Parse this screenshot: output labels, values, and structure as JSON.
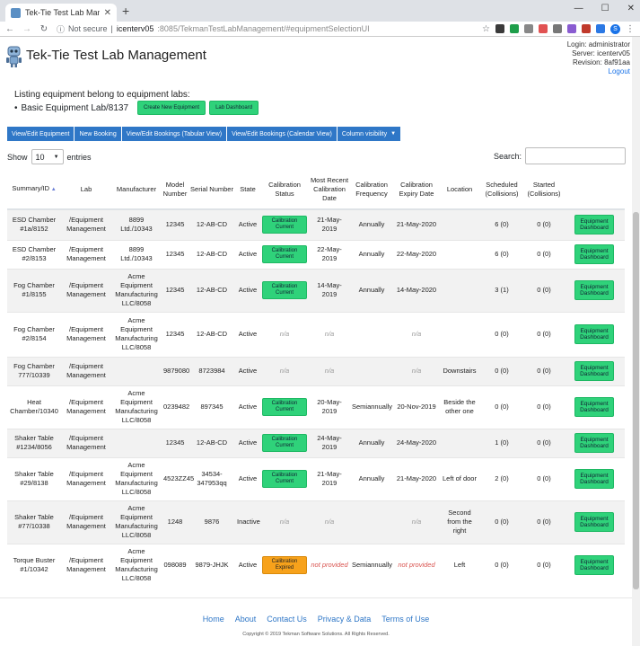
{
  "browser": {
    "tab_title": "Tek-Tie Test Lab Management",
    "not_secure": "Not secure",
    "host": "icenterv05",
    "path": ":8085/TekmanTestLabManagement/#equipmentSelectionUI",
    "profile_initial": "S"
  },
  "header": {
    "title": "Tek-Tie Test Lab Management",
    "login": "Login: administrator",
    "server": "Server: icenterv05",
    "revision": "Revision: 8af91aa",
    "logout": "Logout"
  },
  "listing": {
    "heading": "Listing equipment belong to equipment labs:",
    "lab": "Basic Equipment Lab/8137",
    "create_button": "Create New Equipment",
    "dashboard_button": "Lab Dashboard"
  },
  "toolbar": {
    "view_edit": "View/Edit Equipment",
    "new_booking": "New Booking",
    "bookings_tabular": "View/Edit Bookings (Tabular View)",
    "bookings_calendar": "View/Edit Bookings (Calendar View)",
    "column_visibility": "Column visibility"
  },
  "table_controls": {
    "show": "Show",
    "page_size": "10",
    "entries": "entries",
    "search_label": "Search:"
  },
  "columns": [
    "Summary/ID",
    "Lab",
    "Manufacturer",
    "Model Number",
    "Serial Number",
    "State",
    "Calibration Status",
    "Most Recent Calibration Date",
    "Calibration Frequency",
    "Calibration Expiry Date",
    "Location",
    "Scheduled (Collisions)",
    "Started (Collisions)",
    ""
  ],
  "rows": [
    {
      "summary": "ESD Chamber #1a/8152",
      "lab": "/Equipment Management",
      "manufacturer": "8899 Ltd./10343",
      "model": "12345",
      "serial": "12-AB-CD",
      "state": "Active",
      "cal_status": "Calibration Current",
      "cal_kind": "current",
      "recent": "21-May-2019",
      "frequency": "Annually",
      "expiry": "21-May-2020",
      "location": "",
      "scheduled": "6 (0)",
      "started": "0 (0)",
      "action": "Equipment Dashboard"
    },
    {
      "summary": "ESD Chamber #2/8153",
      "lab": "/Equipment Management",
      "manufacturer": "8899 Ltd./10343",
      "model": "12345",
      "serial": "12-AB-CD",
      "state": "Active",
      "cal_status": "Calibration Current",
      "cal_kind": "current",
      "recent": "22-May-2019",
      "frequency": "Annually",
      "expiry": "22-May-2020",
      "location": "",
      "scheduled": "6 (0)",
      "started": "0 (0)",
      "action": "Equipment Dashboard"
    },
    {
      "summary": "Fog Chamber #1/8155",
      "lab": "/Equipment Management",
      "manufacturer": "Acme Equipment Manufacturing LLC/8058",
      "model": "12345",
      "serial": "12-AB-CD",
      "state": "Active",
      "cal_status": "Calibration Current",
      "cal_kind": "current",
      "recent": "14-May-2019",
      "frequency": "Annually",
      "expiry": "14-May-2020",
      "location": "",
      "scheduled": "3 (1)",
      "started": "0 (0)",
      "action": "Equipment Dashboard"
    },
    {
      "summary": "Fog Chamber #2/8154",
      "lab": "/Equipment Management",
      "manufacturer": "Acme Equipment Manufacturing LLC/8058",
      "model": "12345",
      "serial": "12-AB-CD",
      "state": "Active",
      "cal_status": "n/a",
      "cal_kind": "na",
      "recent": "n/a",
      "frequency": "",
      "expiry": "n/a",
      "location": "",
      "scheduled": "0 (0)",
      "started": "0 (0)",
      "action": "Equipment Dashboard"
    },
    {
      "summary": "Fog Chamber 777/10339",
      "lab": "/Equipment Management",
      "manufacturer": "",
      "model": "9879080",
      "serial": "8723984",
      "state": "Active",
      "cal_status": "n/a",
      "cal_kind": "na",
      "recent": "n/a",
      "frequency": "",
      "expiry": "n/a",
      "location": "Downstairs",
      "scheduled": "0 (0)",
      "started": "0 (0)",
      "action": "Equipment Dashboard"
    },
    {
      "summary": "Heat Chamber/10340",
      "lab": "/Equipment Management",
      "manufacturer": "Acme Equipment Manufacturing LLC/8058",
      "model": "0239482",
      "serial": "897345",
      "state": "Active",
      "cal_status": "Calibration Current",
      "cal_kind": "current",
      "recent": "20-May-2019",
      "frequency": "Semiannually",
      "expiry": "20-Nov-2019",
      "location": "Beside the other one",
      "scheduled": "0 (0)",
      "started": "0 (0)",
      "action": "Equipment Dashboard"
    },
    {
      "summary": "Shaker Table #1234/8056",
      "lab": "/Equipment Management",
      "manufacturer": "",
      "model": "12345",
      "serial": "12-AB-CD",
      "state": "Active",
      "cal_status": "Calibration Current",
      "cal_kind": "current",
      "recent": "24-May-2019",
      "frequency": "Annually",
      "expiry": "24-May-2020",
      "location": "",
      "scheduled": "1 (0)",
      "started": "0 (0)",
      "action": "Equipment Dashboard"
    },
    {
      "summary": "Shaker Table #29/8138",
      "lab": "/Equipment Management",
      "manufacturer": "Acme Equipment Manufacturing LLC/8058",
      "model": "4523ZZ45",
      "serial": "34534-347953qq",
      "state": "Active",
      "cal_status": "Calibration Current",
      "cal_kind": "current",
      "recent": "21-May-2019",
      "frequency": "Annually",
      "expiry": "21-May-2020",
      "location": "Left of door",
      "scheduled": "2 (0)",
      "started": "0 (0)",
      "action": "Equipment Dashboard"
    },
    {
      "summary": "Shaker Table #77/10338",
      "lab": "/Equipment Management",
      "manufacturer": "Acme Equipment Manufacturing LLC/8058",
      "model": "1248",
      "serial": "9876",
      "state": "Inactive",
      "cal_status": "n/a",
      "cal_kind": "na",
      "recent": "n/a",
      "frequency": "",
      "expiry": "n/a",
      "location": "Second from the right",
      "scheduled": "0 (0)",
      "started": "0 (0)",
      "action": "Equipment Dashboard"
    },
    {
      "summary": "Torque Buster #1/10342",
      "lab": "/Equipment Management",
      "manufacturer": "Acme Equipment Manufacturing LLC/8058",
      "model": "098089",
      "serial": "9879-JHJK",
      "state": "Active",
      "cal_status": "Calibration Expired",
      "cal_kind": "expired",
      "recent": "not provided",
      "frequency": "Semiannually",
      "expiry": "not provided",
      "location": "Left",
      "scheduled": "0 (0)",
      "started": "0 (0)",
      "action": "Equipment Dashboard"
    }
  ],
  "footer": {
    "links": [
      "Home",
      "About",
      "Contact Us",
      "Privacy & Data",
      "Terms of Use"
    ],
    "copyright": "Copyright © 2019 Tekman Software Solutions. All Rights Reserved."
  },
  "colors": {
    "primary": "#2f77c7",
    "success": "#2fd27a",
    "warning": "#f7a21b",
    "danger_text": "#d9534f"
  }
}
